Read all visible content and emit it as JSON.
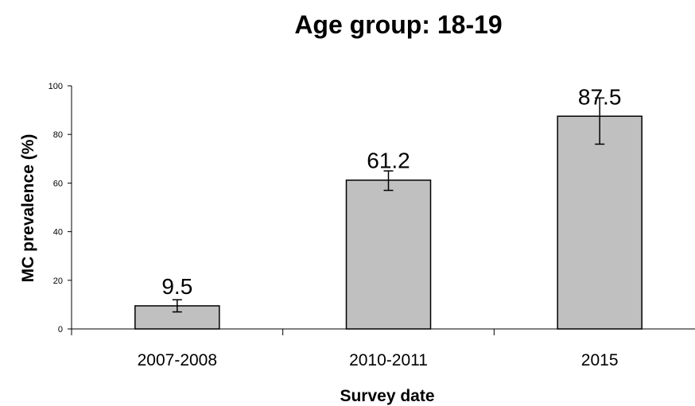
{
  "chart_data": {
    "type": "bar",
    "title": "Age group: 18-19",
    "xlabel": "Survey date",
    "ylabel": "MC prevalence (%)",
    "categories": [
      "2007-2008",
      "2010-2011",
      "2015"
    ],
    "values": [
      9.5,
      61.2,
      87.5
    ],
    "data_labels": [
      "9.5",
      "61.2",
      "87.5"
    ],
    "error_bars": [
      {
        "low": 7.0,
        "high": 12.0
      },
      {
        "low": 57.0,
        "high": 65.0
      },
      {
        "low": 76.0,
        "high": 95.0
      }
    ],
    "ylim": [
      0,
      100
    ],
    "yticks": [
      0,
      20,
      40,
      60,
      80,
      100
    ],
    "ytick_labels": [
      "0",
      "20",
      "40",
      "60",
      "80",
      "100"
    ],
    "grid": false,
    "legend": "none",
    "bar_color": "#c0c0c0",
    "bar_edge_color": "#000000"
  }
}
